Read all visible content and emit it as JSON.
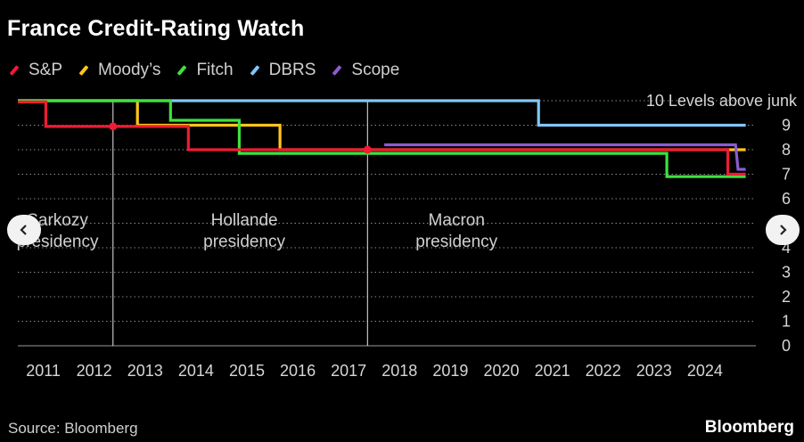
{
  "title": "France Credit-Rating Watch",
  "source": "Source: Bloomberg",
  "brand": "Bloomberg",
  "nav": {
    "prev_icon": "chevron-left-icon",
    "next_icon": "chevron-right-icon"
  },
  "chart_data": {
    "type": "line",
    "title": "France Credit-Rating Watch",
    "ylabel": "Levels above junk",
    "top_tick_label": "10 Levels above junk",
    "ylim": [
      0,
      10
    ],
    "xlim": [
      2010.5,
      2025.0
    ],
    "y_ticks": [
      "0",
      "1",
      "2",
      "3",
      "4",
      "5",
      "6",
      "7",
      "8",
      "9"
    ],
    "x_ticks": [
      "2011",
      "2012",
      "2013",
      "2014",
      "2015",
      "2016",
      "2017",
      "2018",
      "2019",
      "2020",
      "2021",
      "2022",
      "2023",
      "2024"
    ],
    "grid": true,
    "legend_position": "top-left",
    "series": [
      {
        "name": "DBRS",
        "color": "#7fc8f8",
        "x": [
          2010.5,
          2020.73,
          2020.73,
          2024.8
        ],
        "y": [
          10,
          10,
          9,
          9
        ]
      },
      {
        "name": "Moody’s",
        "color": "#ffc61a",
        "x": [
          2010.5,
          2012.85,
          2012.85,
          2015.65,
          2015.65,
          2024.8
        ],
        "y": [
          10,
          10,
          9,
          9,
          8,
          8
        ]
      },
      {
        "name": "Fitch",
        "color": "#3ee23e",
        "x": [
          2010.5,
          2013.5,
          2013.5,
          2014.85,
          2014.85,
          2023.25,
          2023.25,
          2024.8
        ],
        "y": [
          10,
          10,
          9.2,
          9.2,
          7.85,
          7.85,
          6.9,
          6.9
        ]
      },
      {
        "name": "Scope",
        "color": "#8a5cd0",
        "x": [
          2017.7,
          2024.6,
          2024.65,
          2024.8
        ],
        "y": [
          8.2,
          8.2,
          7.2,
          7.2
        ]
      },
      {
        "name": "S&P",
        "color": "#ee1c34",
        "x": [
          2010.5,
          2011.05,
          2011.05,
          2013.85,
          2013.85,
          2024.45,
          2024.45,
          2024.8
        ],
        "y": [
          9.95,
          9.95,
          8.95,
          8.95,
          8.0,
          8.0,
          7.0,
          7.0
        ]
      }
    ],
    "markers": [
      {
        "x": 2012.37,
        "y": 8.95,
        "color": "#ee1c34"
      },
      {
        "x": 2017.37,
        "y": 8.0,
        "color": "#ee1c34"
      }
    ],
    "annotations": [
      {
        "x": 2012.37,
        "text_lines": [
          "Sarkozy",
          "presidency"
        ],
        "label_x": 2011.28
      },
      {
        "x": 2017.37,
        "text_lines": [
          "Hollande",
          "presidency"
        ],
        "label_x": 2014.95
      },
      {
        "x": null,
        "text_lines": [
          "Macron",
          "presidency"
        ],
        "label_x": 2019.12
      }
    ]
  }
}
